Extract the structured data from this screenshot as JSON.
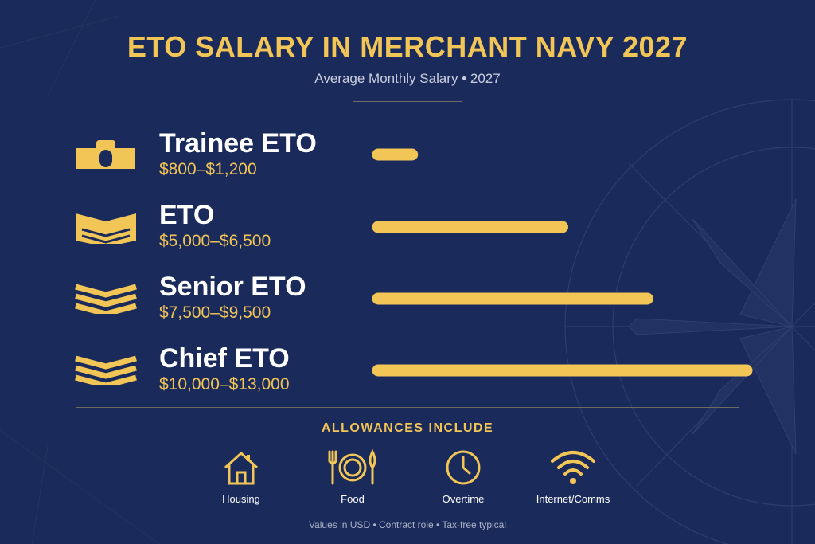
{
  "colors": {
    "background": "#1a2a5a",
    "accent": "#f2c557",
    "text": "#ffffff",
    "muted": "#c8cfdf"
  },
  "header": {
    "title": "ETO SALARY IN MERCHANT NAVY 2027",
    "subtitle": "Average Monthly Salary • 2027"
  },
  "chart_data": {
    "type": "bar",
    "orientation": "horizontal",
    "categories": [
      "Trainee ETO",
      "ETO",
      "Senior ETO",
      "Chief ETO"
    ],
    "labels": [
      "$800–$1,200",
      "$5,000–$6,500",
      "$7,500–$9,500",
      "$10,000–$13,000"
    ],
    "ranges": [
      [
        800,
        1200
      ],
      [
        5000,
        6500
      ],
      [
        7500,
        9500
      ],
      [
        10000,
        13000
      ]
    ],
    "values": [
      1200,
      6500,
      9500,
      13000
    ],
    "unit": "USD per month",
    "grid": false,
    "legend": "none",
    "icons": [
      "trainee-rank-icon",
      "one-chevron-rank-icon",
      "two-chevron-rank-icon",
      "three-chevron-rank-icon"
    ]
  },
  "allowances": {
    "title": "ALLOWANCES INCLUDE",
    "items": [
      {
        "label": "Housing",
        "icon": "house-icon"
      },
      {
        "label": "Food",
        "icon": "plate-cutlery-icon"
      },
      {
        "label": "Overtime",
        "icon": "clock-icon"
      },
      {
        "label": "Internet/Comms",
        "icon": "wifi-icon"
      }
    ]
  },
  "footnote": "Values in USD • Contract role • Tax-free typical"
}
